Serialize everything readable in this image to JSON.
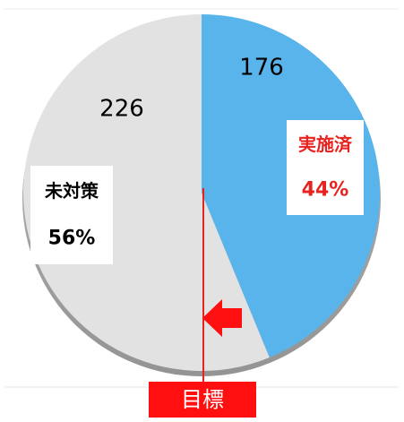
{
  "chart_data": {
    "type": "pie",
    "categories": [
      "実施済",
      "未対策"
    ],
    "values": [
      176,
      226
    ],
    "percent_labels": [
      "44%",
      "56%"
    ],
    "colors": [
      "#5ab4ec",
      "#e2e2e2"
    ],
    "target": 50,
    "target_label": "目標"
  }
}
